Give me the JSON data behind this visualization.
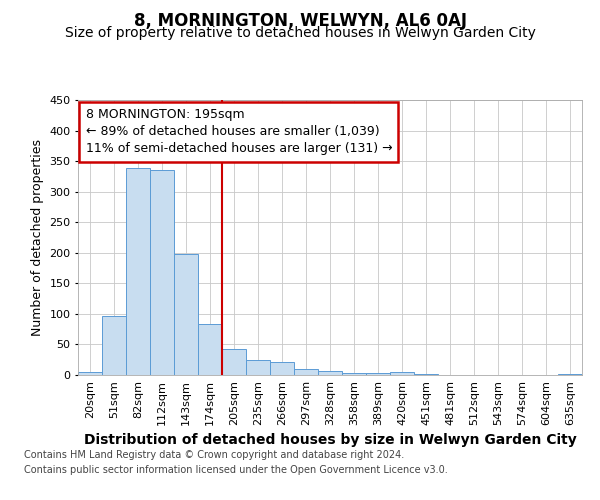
{
  "title": "8, MORNINGTON, WELWYN, AL6 0AJ",
  "subtitle": "Size of property relative to detached houses in Welwyn Garden City",
  "xlabel": "Distribution of detached houses by size in Welwyn Garden City",
  "ylabel": "Number of detached properties",
  "categories": [
    "20sqm",
    "51sqm",
    "82sqm",
    "112sqm",
    "143sqm",
    "174sqm",
    "205sqm",
    "235sqm",
    "266sqm",
    "297sqm",
    "328sqm",
    "358sqm",
    "389sqm",
    "420sqm",
    "451sqm",
    "481sqm",
    "512sqm",
    "543sqm",
    "574sqm",
    "604sqm",
    "635sqm"
  ],
  "values": [
    5,
    97,
    338,
    335,
    198,
    83,
    42,
    25,
    22,
    10,
    6,
    4,
    3,
    5,
    1,
    0,
    0,
    0,
    0,
    0,
    2
  ],
  "bar_color": "#c8ddf0",
  "bar_edge_color": "#5b9bd5",
  "vline_x_idx": 6,
  "vline_color": "#cc0000",
  "annotation_line1": "8 MORNINGTON: 195sqm",
  "annotation_line2": "← 89% of detached houses are smaller (1,039)",
  "annotation_line3": "11% of semi-detached houses are larger (131) →",
  "annotation_box_color": "#cc0000",
  "annotation_box_fill": "#ffffff",
  "ylim": [
    0,
    450
  ],
  "yticks": [
    0,
    50,
    100,
    150,
    200,
    250,
    300,
    350,
    400,
    450
  ],
  "footer1": "Contains HM Land Registry data © Crown copyright and database right 2024.",
  "footer2": "Contains public sector information licensed under the Open Government Licence v3.0.",
  "bg_color": "#ffffff",
  "grid_color": "#c8c8c8",
  "title_fontsize": 12,
  "subtitle_fontsize": 10,
  "ylabel_fontsize": 9,
  "xlabel_fontsize": 10,
  "tick_fontsize": 8,
  "ann_fontsize": 9,
  "footer_fontsize": 7
}
